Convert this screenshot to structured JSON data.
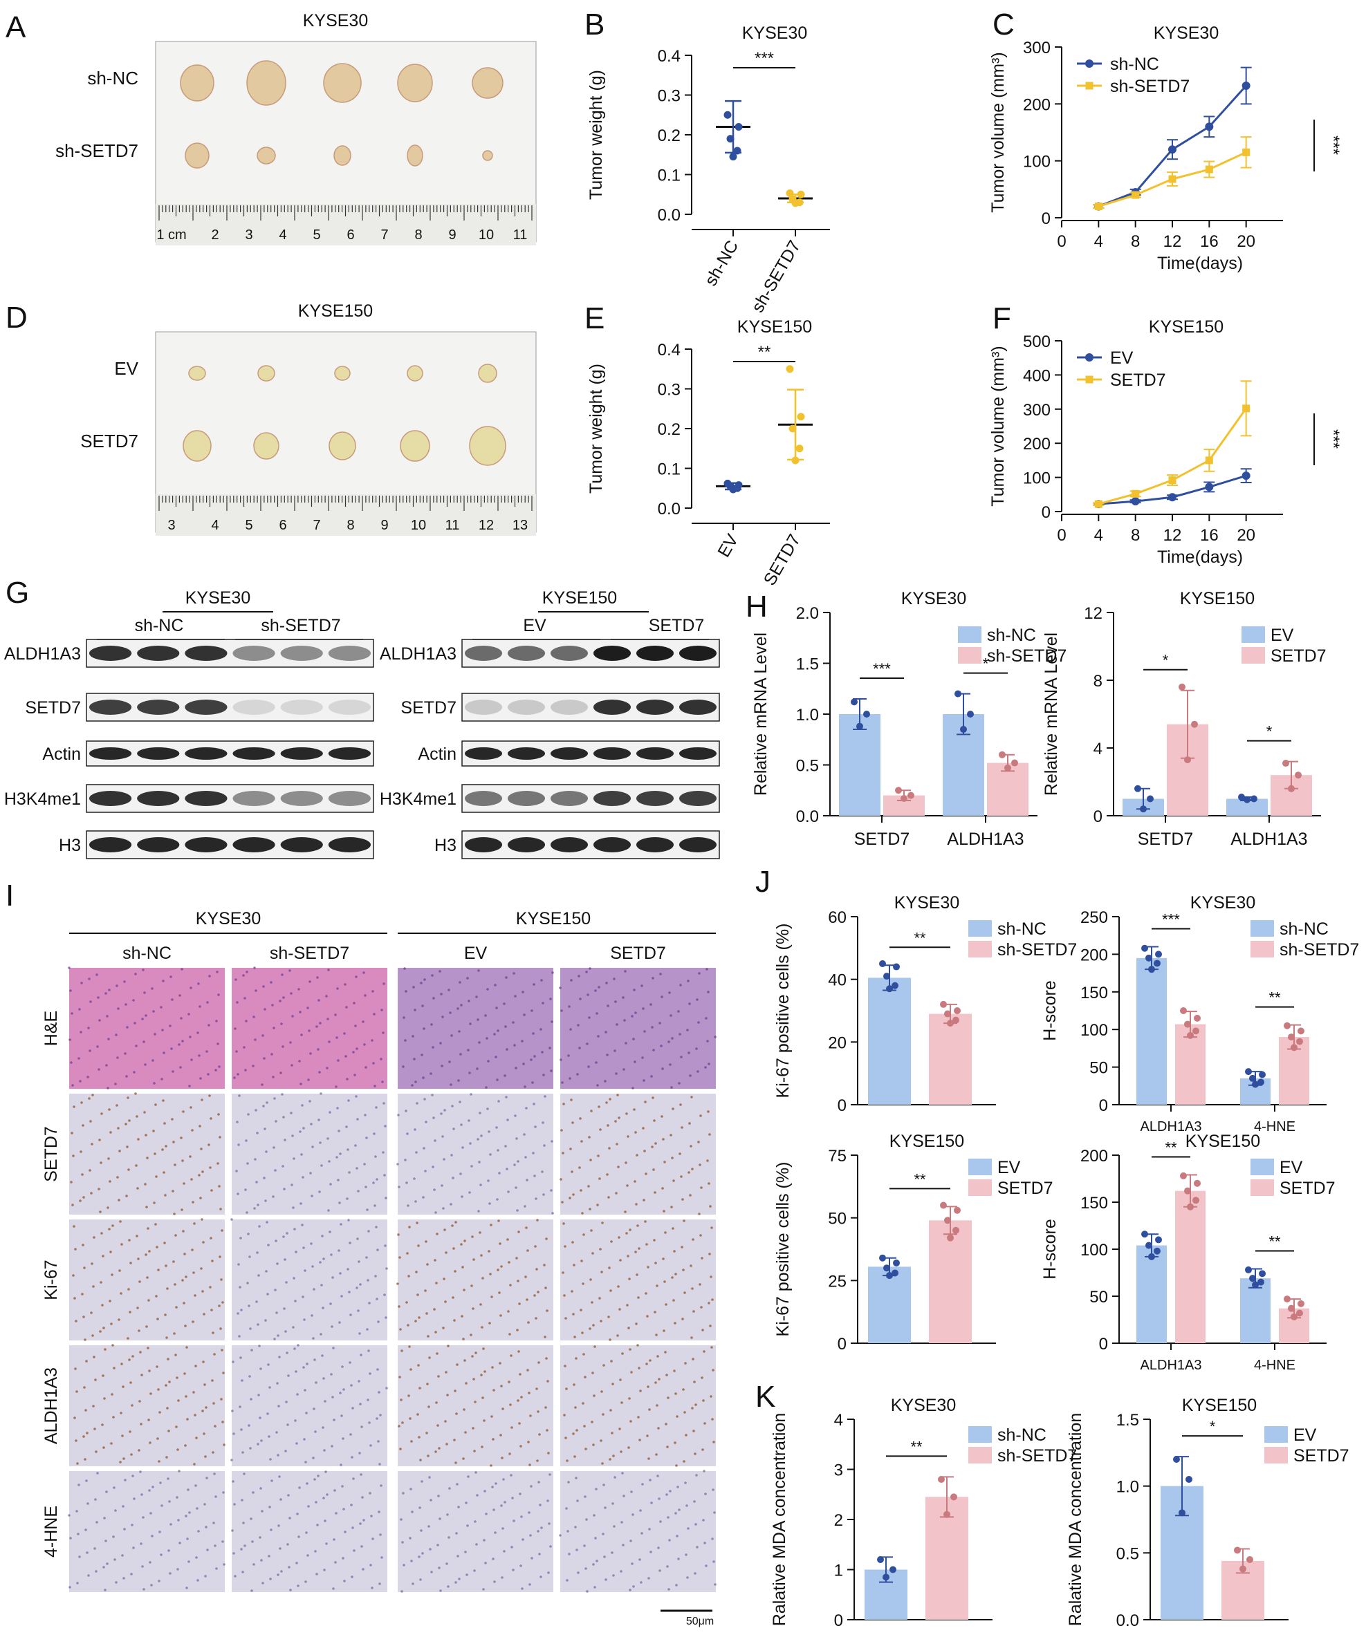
{
  "panels": {
    "A": {
      "letter": "A",
      "title": "KYSE30",
      "rows": [
        "sh-NC",
        "sh-SETD7"
      ],
      "ruler": [
        "1 cm",
        "2",
        "3",
        "4",
        "5",
        "6",
        "7",
        "8",
        "9",
        "10",
        "11"
      ]
    },
    "D": {
      "letter": "D",
      "title": "KYSE150",
      "rows": [
        "EV",
        "SETD7"
      ],
      "ruler": [
        "3",
        "4",
        "5",
        "6",
        "7",
        "8",
        "9",
        "10",
        "11",
        "12",
        "13"
      ]
    },
    "G": {
      "letter": "G",
      "left": {
        "title": "KYSE30",
        "groups": [
          "sh-NC",
          "sh-SETD7"
        ]
      },
      "right": {
        "title": "KYSE150",
        "groups": [
          "EV",
          "SETD7"
        ]
      },
      "proteins": [
        "ALDH1A3",
        "SETD7",
        "Actin",
        "H3K4me1",
        "H3"
      ]
    },
    "I": {
      "letter": "I",
      "group_titles": [
        "KYSE30",
        "KYSE150"
      ],
      "columns": [
        "sh-NC",
        "sh-SETD7",
        "EV",
        "SETD7"
      ],
      "rows": [
        "H&E",
        "SETD7",
        "Ki-67",
        "ALDH1A3",
        "4-HNE"
      ],
      "scale": "50μm"
    },
    "J": {
      "letter": "J"
    },
    "K": {
      "letter": "K"
    }
  },
  "colors": {
    "blue": "#2f4f9e",
    "yellow": "#f2c12e",
    "bar_blue": "#a9c7ec",
    "bar_pink": "#f2c3c8",
    "pink_dot": "#c97a7e",
    "he": "#d98bc0",
    "ihc": "#d9d7e6"
  },
  "chart_data": [
    {
      "id": "B",
      "type": "scatter",
      "letter": "B",
      "title": "KYSE30",
      "ylabel": "Tumor weight (g)",
      "ylim": [
        0,
        0.4
      ],
      "yticks": [
        "0.0",
        "0.1",
        "0.2",
        "0.3",
        "0.4"
      ],
      "categories": [
        "sh-NC",
        "sh-SETD7"
      ],
      "means": [
        0.22,
        0.04
      ],
      "sd": [
        0.065,
        0.01
      ],
      "points": [
        [
          0.25,
          0.22,
          0.19,
          0.16,
          0.145
        ],
        [
          0.053,
          0.05,
          0.038,
          0.03,
          0.028
        ]
      ],
      "sig": "***"
    },
    {
      "id": "C",
      "type": "line",
      "letter": "C",
      "title": "KYSE30",
      "ylabel": "Tumor volume (mm³)",
      "xlabel": "Time(days)",
      "x": [
        4,
        8,
        12,
        16,
        20
      ],
      "xticks": [
        "0",
        "4",
        "8",
        "12",
        "16",
        "20"
      ],
      "yticks": [
        "0",
        "100",
        "200",
        "300"
      ],
      "ylim": [
        0,
        300
      ],
      "xlim": [
        0,
        24
      ],
      "series": [
        {
          "name": "sh-NC",
          "values": [
            20,
            45,
            120,
            160,
            232
          ],
          "err": [
            3,
            5,
            17,
            18,
            32
          ]
        },
        {
          "name": "sh-SETD7",
          "values": [
            20,
            40,
            68,
            85,
            115
          ],
          "err": [
            3,
            4,
            12,
            14,
            27
          ]
        }
      ],
      "sig": "***"
    },
    {
      "id": "E",
      "type": "scatter",
      "letter": "E",
      "title": "KYSE150",
      "ylabel": "Tumor weight (g)",
      "ylim": [
        0,
        0.4
      ],
      "yticks": [
        "0.0",
        "0.1",
        "0.2",
        "0.3",
        "0.4"
      ],
      "categories": [
        "EV",
        "SETD7"
      ],
      "means": [
        0.055,
        0.21
      ],
      "sd": [
        0.008,
        0.088
      ],
      "points": [
        [
          0.062,
          0.058,
          0.055,
          0.05,
          0.047
        ],
        [
          0.35,
          0.23,
          0.2,
          0.15,
          0.12
        ]
      ],
      "sig": "**"
    },
    {
      "id": "F",
      "type": "line",
      "letter": "F",
      "title": "KYSE150",
      "ylabel": "Tumor volume (mm³)",
      "xlabel": "Time(days)",
      "x": [
        4,
        8,
        12,
        16,
        20
      ],
      "xticks": [
        "0",
        "4",
        "8",
        "12",
        "16",
        "20"
      ],
      "yticks": [
        "0",
        "100",
        "200",
        "300",
        "400",
        "500"
      ],
      "ylim": [
        0,
        500
      ],
      "xlim": [
        0,
        24
      ],
      "series": [
        {
          "name": "EV",
          "values": [
            22,
            30,
            42,
            72,
            105
          ],
          "err": [
            3,
            4,
            6,
            14,
            20
          ]
        },
        {
          "name": "SETD7",
          "values": [
            22,
            52,
            92,
            150,
            302
          ],
          "err": [
            3,
            8,
            15,
            32,
            80
          ]
        }
      ],
      "sig": "***"
    },
    {
      "id": "H1",
      "type": "bar",
      "letter": "H",
      "title": "KYSE30",
      "ylabel": "Relative mRNA Level",
      "ylim": [
        0,
        2
      ],
      "yticks": [
        "0.0",
        "0.5",
        "1.0",
        "1.5",
        "2.0"
      ],
      "categories": [
        "SETD7",
        "ALDH1A3"
      ],
      "series": [
        {
          "name": "sh-NC",
          "values": [
            1.0,
            1.0
          ],
          "err": [
            0.15,
            0.2
          ],
          "points": [
            [
              1.12,
              1.0,
              0.88
            ],
            [
              1.2,
              1.0,
              0.85
            ]
          ]
        },
        {
          "name": "sh-SETD7",
          "values": [
            0.2,
            0.52
          ],
          "err": [
            0.05,
            0.08
          ],
          "points": [
            [
              0.25,
              0.2,
              0.17
            ],
            [
              0.6,
              0.52,
              0.47
            ]
          ]
        }
      ],
      "sig": [
        "***",
        "*"
      ]
    },
    {
      "id": "H2",
      "type": "bar",
      "letter": "",
      "title": "KYSE150",
      "ylabel": "Relative mRNA Level",
      "ylim": [
        0,
        12
      ],
      "yticks": [
        "0",
        "4",
        "8",
        "12"
      ],
      "categories": [
        "SETD7",
        "ALDH1A3"
      ],
      "series": [
        {
          "name": "EV",
          "values": [
            1.0,
            1.0
          ],
          "err": [
            0.6,
            0.1
          ],
          "points": [
            [
              1.6,
              1.0,
              0.4
            ],
            [
              1.1,
              1.0,
              0.95
            ]
          ]
        },
        {
          "name": "SETD7",
          "values": [
            5.4,
            2.4
          ],
          "err": [
            2.0,
            0.8
          ],
          "points": [
            [
              7.6,
              5.4,
              3.3
            ],
            [
              3.1,
              2.4,
              1.6
            ]
          ]
        }
      ],
      "sig": [
        "*",
        "*"
      ]
    },
    {
      "id": "J1",
      "type": "bar",
      "letter": "",
      "title": "KYSE30",
      "ylabel": "Ki-67 positive cells (%)",
      "ylim": [
        0,
        60
      ],
      "yticks": [
        "0",
        "20",
        "40",
        "60"
      ],
      "categories": [
        ""
      ],
      "series": [
        {
          "name": "sh-NC",
          "values": [
            40.5
          ],
          "err": [
            4
          ],
          "points": [
            [
              45,
              44,
              41,
              38,
              37
            ]
          ]
        },
        {
          "name": "sh-SETD7",
          "values": [
            29
          ],
          "err": [
            3
          ],
          "points": [
            [
              32,
              30,
              29,
              27,
              26
            ]
          ]
        }
      ],
      "sig": [
        "**"
      ]
    },
    {
      "id": "J2",
      "type": "bar",
      "letter": "",
      "title": "KYSE30",
      "ylabel": "H-score",
      "ylim": [
        0,
        250
      ],
      "yticks": [
        "0",
        "50",
        "100",
        "150",
        "200",
        "250"
      ],
      "categories": [
        "ALDH1A3",
        "4-HNE"
      ],
      "series": [
        {
          "name": "sh-NC",
          "values": [
            195,
            35
          ],
          "err": [
            15,
            9
          ],
          "points": [
            [
              208,
              200,
              195,
              188,
              180
            ],
            [
              44,
              40,
              35,
              30,
              27
            ]
          ]
        },
        {
          "name": "sh-SETD7",
          "values": [
            107,
            90
          ],
          "err": [
            17,
            16
          ],
          "points": [
            [
              125,
              115,
              107,
              98,
              92
            ],
            [
              105,
              98,
              90,
              84,
              76
            ]
          ]
        }
      ],
      "sig": [
        "***",
        "**"
      ]
    },
    {
      "id": "J3",
      "type": "bar",
      "letter": "",
      "title": "KYSE150",
      "ylabel": "Ki-67 positive cells (%)",
      "ylim": [
        0,
        75
      ],
      "yticks": [
        "0",
        "25",
        "50",
        "75"
      ],
      "categories": [
        ""
      ],
      "series": [
        {
          "name": "EV",
          "values": [
            30.5
          ],
          "err": [
            3.5
          ],
          "points": [
            [
              34,
              32,
              30,
              28,
              27
            ]
          ]
        },
        {
          "name": "SETD7",
          "values": [
            49
          ],
          "err": [
            5.5
          ],
          "points": [
            [
              55,
              53,
              49,
              45,
              42
            ]
          ]
        }
      ],
      "sig": [
        "**"
      ]
    },
    {
      "id": "J4",
      "type": "bar",
      "letter": "",
      "title": "KYSE150",
      "ylabel": "H-score",
      "ylim": [
        0,
        200
      ],
      "yticks": [
        "0",
        "50",
        "100",
        "150",
        "200"
      ],
      "categories": [
        "ALDH1A3",
        "4-HNE"
      ],
      "series": [
        {
          "name": "EV",
          "values": [
            104,
            69
          ],
          "err": [
            12,
            10
          ],
          "points": [
            [
              116,
              110,
              104,
              98,
              92
            ],
            [
              78,
              74,
              69,
              65,
              62
            ]
          ]
        },
        {
          "name": "SETD7",
          "values": [
            162,
            37
          ],
          "err": [
            17,
            10
          ],
          "points": [
            [
              178,
              170,
              162,
              152,
              145
            ],
            [
              47,
              42,
              37,
              32,
              28
            ]
          ]
        }
      ],
      "sig": [
        "**",
        "**"
      ]
    },
    {
      "id": "K1",
      "type": "bar",
      "letter": "",
      "title": "KYSE30",
      "ylabel": "Ralative MDA concentration",
      "ylim": [
        0,
        4
      ],
      "yticks": [
        "0",
        "1",
        "2",
        "3",
        "4"
      ],
      "categories": [
        ""
      ],
      "series": [
        {
          "name": "sh-NC",
          "values": [
            1.0
          ],
          "err": [
            0.25
          ],
          "points": [
            [
              1.2,
              1.0,
              0.85
            ]
          ]
        },
        {
          "name": "sh-SETD7",
          "values": [
            2.45
          ],
          "err": [
            0.4
          ],
          "points": [
            [
              2.8,
              2.45,
              2.1
            ]
          ]
        }
      ],
      "sig": [
        "**"
      ]
    },
    {
      "id": "K2",
      "type": "bar",
      "letter": "",
      "title": "KYSE150",
      "ylabel": "Ralative MDA concentration",
      "ylim": [
        0,
        1.5
      ],
      "yticks": [
        "0.0",
        "0.5",
        "1.0",
        "1.5"
      ],
      "categories": [
        ""
      ],
      "series": [
        {
          "name": "EV",
          "values": [
            1.0
          ],
          "err": [
            0.22
          ],
          "points": [
            [
              1.2,
              1.05,
              0.8
            ]
          ]
        },
        {
          "name": "SETD7",
          "values": [
            0.44
          ],
          "err": [
            0.09
          ],
          "points": [
            [
              0.52,
              0.45,
              0.38
            ]
          ]
        }
      ],
      "sig": [
        "*"
      ]
    }
  ]
}
